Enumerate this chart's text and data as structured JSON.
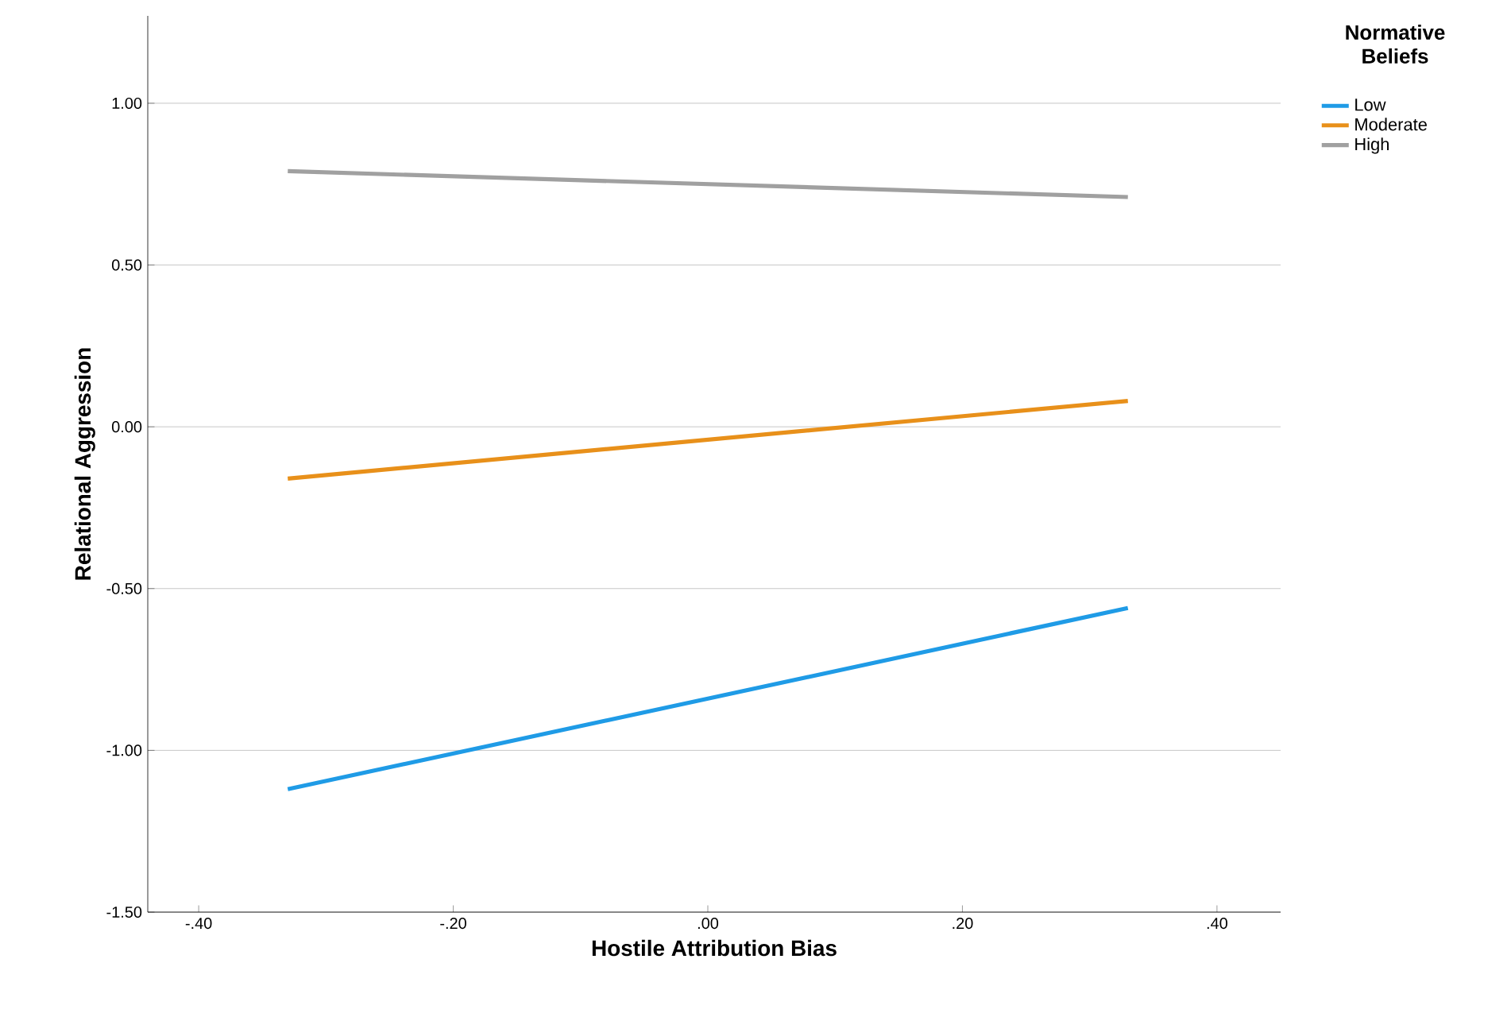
{
  "chart_data": {
    "type": "line",
    "xlabel": "Hostile Attribution Bias",
    "ylabel": "Relational Aggression",
    "legend_title": "Normative Beliefs",
    "x": [
      -0.33,
      0.33
    ],
    "series": [
      {
        "name": "Low",
        "color": "#1f9be6",
        "values": [
          -1.12,
          -0.56
        ]
      },
      {
        "name": "Moderate",
        "color": "#e8901a",
        "values": [
          -0.16,
          0.08
        ]
      },
      {
        "name": "High",
        "color": "#a0a0a0",
        "values": [
          0.79,
          0.71
        ]
      }
    ],
    "xlim": [
      -0.44,
      0.45
    ],
    "ylim": [
      -1.5,
      1.27
    ],
    "xticks": [
      {
        "value": -0.4,
        "label": "-.40"
      },
      {
        "value": -0.2,
        "label": "-.20"
      },
      {
        "value": 0,
        "label": ".00"
      },
      {
        "value": 0.2,
        "label": ".20"
      },
      {
        "value": 0.4,
        "label": ".40"
      }
    ],
    "yticks": [
      {
        "value": -1.5,
        "label": "-1.50"
      },
      {
        "value": -1.0,
        "label": "-1.00"
      },
      {
        "value": -0.5,
        "label": "-0.50"
      },
      {
        "value": 0,
        "label": "0.00"
      },
      {
        "value": 0.5,
        "label": "0.50"
      },
      {
        "value": 1.0,
        "label": "1.00"
      }
    ],
    "grid": "y",
    "legend": "top right",
    "marker": "none",
    "line_style": "solid"
  }
}
